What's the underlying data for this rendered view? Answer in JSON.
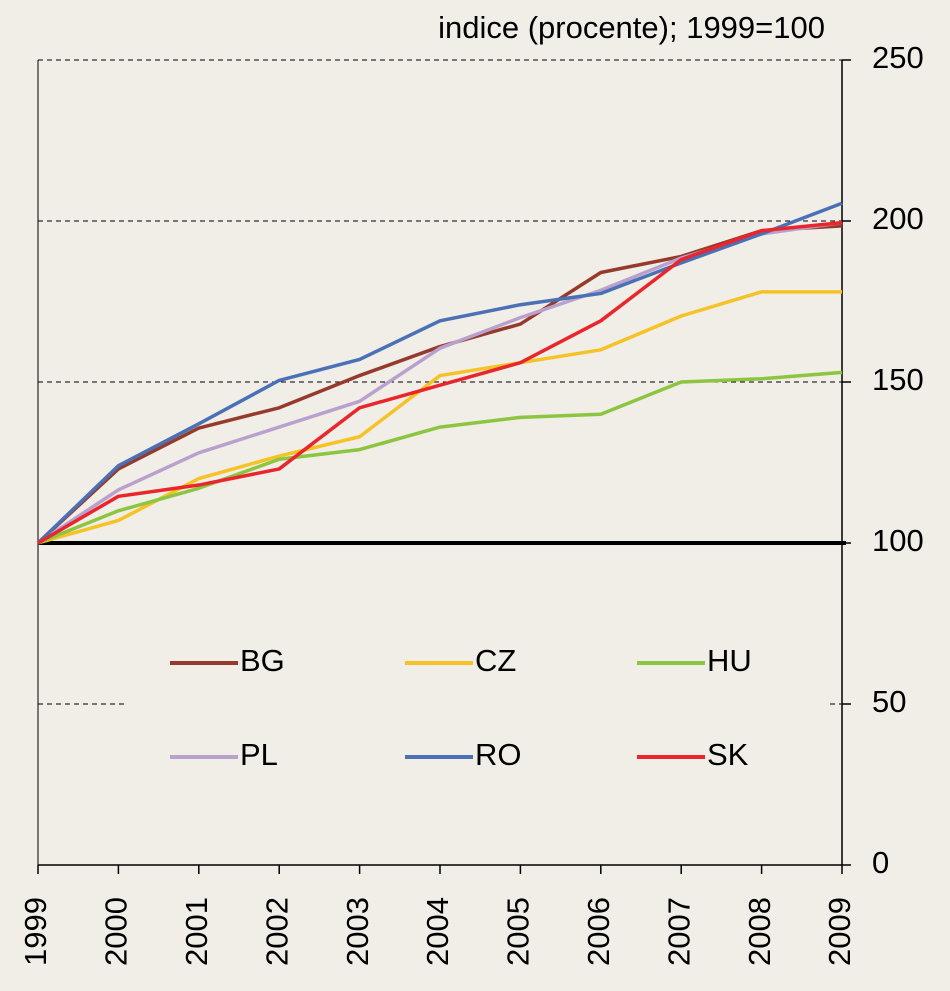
{
  "chart_data": {
    "type": "line",
    "title": "indice (procente); 1999=100",
    "x": [
      1999,
      2000,
      2001,
      2002,
      2003,
      2004,
      2005,
      2006,
      2007,
      2008,
      2009
    ],
    "xlim": [
      1999,
      2009
    ],
    "ylim": [
      0,
      250
    ],
    "yticks": [
      0,
      50,
      100,
      150,
      200,
      250
    ],
    "grid": true,
    "reference_line": 100,
    "series": [
      {
        "name": "BG",
        "color": "#963a2c",
        "values": [
          100,
          123,
          135.7,
          142,
          152,
          161,
          168,
          184,
          189,
          197,
          198.5
        ]
      },
      {
        "name": "CZ",
        "color": "#f5c325",
        "values": [
          100,
          107,
          120,
          127,
          133,
          152,
          156,
          160,
          170.5,
          178,
          178
        ]
      },
      {
        "name": "HU",
        "color": "#8cc540",
        "values": [
          100,
          110,
          117,
          126,
          129,
          136,
          139,
          140,
          150,
          151,
          153
        ]
      },
      {
        "name": "PL",
        "color": "#b9a1cd",
        "values": [
          100,
          116.5,
          128,
          136,
          144,
          160.5,
          170,
          178.5,
          188.5,
          196,
          199.5
        ]
      },
      {
        "name": "RO",
        "color": "#4a70b6",
        "values": [
          100,
          124,
          137,
          150.5,
          157,
          169,
          174,
          177.5,
          187,
          196,
          205.5
        ]
      },
      {
        "name": "SK",
        "color": "#e8262b",
        "values": [
          100,
          114.5,
          118,
          123,
          142,
          149,
          156,
          169,
          188,
          197,
          199.5
        ]
      }
    ]
  }
}
